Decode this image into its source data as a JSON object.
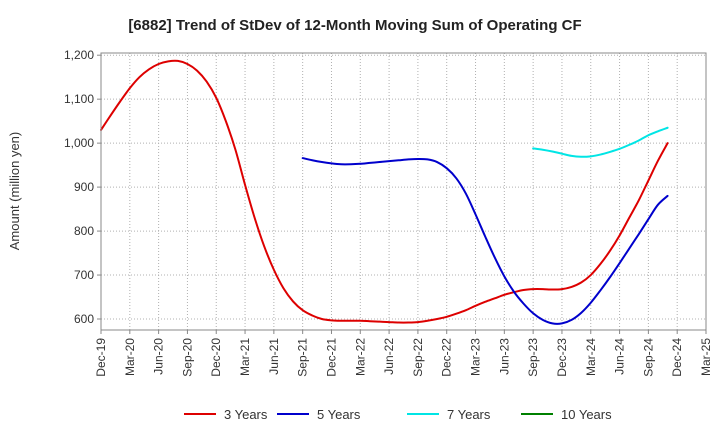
{
  "chart_data": {
    "type": "line",
    "title": "[6882]  Trend of StDev of 12-Month Moving Sum of Operating CF",
    "ylabel": "Amount (million yen)",
    "xlabel": "",
    "ylim": [
      575,
      1205
    ],
    "yticks": [
      600,
      700,
      800,
      900,
      1000,
      1100,
      1200
    ],
    "ytick_labels": [
      "600",
      "700",
      "800",
      "900",
      "1,000",
      "1,100",
      "1,200"
    ],
    "xticks": [
      "2019-12",
      "2020-03",
      "2020-06",
      "2020-09",
      "2020-12",
      "2021-03",
      "2021-06",
      "2021-09",
      "2021-12",
      "2022-03",
      "2022-06",
      "2022-09",
      "2022-12",
      "2023-03",
      "2023-06",
      "2023-09",
      "2023-12",
      "2024-03",
      "2024-06",
      "2024-09",
      "2024-12",
      "2025-03"
    ],
    "xtick_labels": [
      "Dec-19",
      "Mar-20",
      "Jun-20",
      "Sep-20",
      "Dec-20",
      "Mar-21",
      "Jun-21",
      "Sep-21",
      "Dec-21",
      "Mar-22",
      "Jun-22",
      "Sep-22",
      "Dec-22",
      "Mar-23",
      "Jun-23",
      "Sep-23",
      "Dec-23",
      "Mar-24",
      "Jun-24",
      "Sep-24",
      "Dec-24",
      "Mar-25"
    ],
    "grid": true,
    "legend_position": "bottom",
    "series": [
      {
        "name": "3 Years",
        "color": "#dd0000",
        "points": [
          [
            "2019-12",
            1030
          ],
          [
            "2020-01",
            1063
          ],
          [
            "2020-02",
            1095
          ],
          [
            "2020-03",
            1125
          ],
          [
            "2020-04",
            1150
          ],
          [
            "2020-05",
            1168
          ],
          [
            "2020-06",
            1180
          ],
          [
            "2020-07",
            1186
          ],
          [
            "2020-08",
            1187
          ],
          [
            "2020-09",
            1180
          ],
          [
            "2020-10",
            1165
          ],
          [
            "2020-11",
            1140
          ],
          [
            "2020-12",
            1103
          ],
          [
            "2021-01",
            1050
          ],
          [
            "2021-02",
            985
          ],
          [
            "2021-03",
            905
          ],
          [
            "2021-04",
            830
          ],
          [
            "2021-05",
            765
          ],
          [
            "2021-06",
            712
          ],
          [
            "2021-07",
            670
          ],
          [
            "2021-08",
            640
          ],
          [
            "2021-09",
            620
          ],
          [
            "2021-10",
            608
          ],
          [
            "2021-11",
            600
          ],
          [
            "2021-12",
            597
          ],
          [
            "2022-01",
            596
          ],
          [
            "2022-02",
            596
          ],
          [
            "2022-03",
            596
          ],
          [
            "2022-04",
            595
          ],
          [
            "2022-05",
            594
          ],
          [
            "2022-06",
            593
          ],
          [
            "2022-07",
            592
          ],
          [
            "2022-08",
            592
          ],
          [
            "2022-09",
            593
          ],
          [
            "2022-10",
            596
          ],
          [
            "2022-11",
            600
          ],
          [
            "2022-12",
            605
          ],
          [
            "2023-01",
            612
          ],
          [
            "2023-02",
            620
          ],
          [
            "2023-03",
            630
          ],
          [
            "2023-04",
            639
          ],
          [
            "2023-05",
            647
          ],
          [
            "2023-06",
            655
          ],
          [
            "2023-07",
            661
          ],
          [
            "2023-08",
            666
          ],
          [
            "2023-09",
            668
          ],
          [
            "2023-10",
            668
          ],
          [
            "2023-11",
            667
          ],
          [
            "2023-12",
            668
          ],
          [
            "2024-01",
            673
          ],
          [
            "2024-02",
            683
          ],
          [
            "2024-03",
            700
          ],
          [
            "2024-04",
            725
          ],
          [
            "2024-05",
            755
          ],
          [
            "2024-06",
            790
          ],
          [
            "2024-07",
            830
          ],
          [
            "2024-08",
            870
          ],
          [
            "2024-09",
            915
          ],
          [
            "2024-10",
            960
          ],
          [
            "2024-11",
            1000
          ]
        ]
      },
      {
        "name": "5 Years",
        "color": "#0000cc",
        "points": [
          [
            "2021-09",
            966
          ],
          [
            "2021-10",
            961
          ],
          [
            "2021-11",
            957
          ],
          [
            "2021-12",
            954
          ],
          [
            "2022-01",
            952
          ],
          [
            "2022-02",
            952
          ],
          [
            "2022-03",
            953
          ],
          [
            "2022-04",
            955
          ],
          [
            "2022-05",
            957
          ],
          [
            "2022-06",
            959
          ],
          [
            "2022-07",
            961
          ],
          [
            "2022-08",
            963
          ],
          [
            "2022-09",
            964
          ],
          [
            "2022-10",
            963
          ],
          [
            "2022-11",
            957
          ],
          [
            "2022-12",
            943
          ],
          [
            "2023-01",
            920
          ],
          [
            "2023-02",
            885
          ],
          [
            "2023-03",
            838
          ],
          [
            "2023-04",
            788
          ],
          [
            "2023-05",
            740
          ],
          [
            "2023-06",
            697
          ],
          [
            "2023-07",
            662
          ],
          [
            "2023-08",
            635
          ],
          [
            "2023-09",
            613
          ],
          [
            "2023-10",
            598
          ],
          [
            "2023-11",
            590
          ],
          [
            "2023-12",
            590
          ],
          [
            "2024-01",
            598
          ],
          [
            "2024-02",
            614
          ],
          [
            "2024-03",
            637
          ],
          [
            "2024-04",
            665
          ],
          [
            "2024-05",
            695
          ],
          [
            "2024-06",
            727
          ],
          [
            "2024-07",
            760
          ],
          [
            "2024-08",
            793
          ],
          [
            "2024-09",
            827
          ],
          [
            "2024-10",
            860
          ],
          [
            "2024-11",
            880
          ]
        ]
      },
      {
        "name": "7 Years",
        "color": "#00e5e5",
        "points": [
          [
            "2023-09",
            988
          ],
          [
            "2023-10",
            985
          ],
          [
            "2023-11",
            981
          ],
          [
            "2023-12",
            976
          ],
          [
            "2024-01",
            971
          ],
          [
            "2024-02",
            969
          ],
          [
            "2024-03",
            970
          ],
          [
            "2024-04",
            974
          ],
          [
            "2024-05",
            980
          ],
          [
            "2024-06",
            987
          ],
          [
            "2024-07",
            996
          ],
          [
            "2024-08",
            1006
          ],
          [
            "2024-09",
            1018
          ],
          [
            "2024-10",
            1027
          ],
          [
            "2024-11",
            1035
          ]
        ]
      },
      {
        "name": "10 Years",
        "color": "#008000",
        "points": []
      }
    ]
  }
}
